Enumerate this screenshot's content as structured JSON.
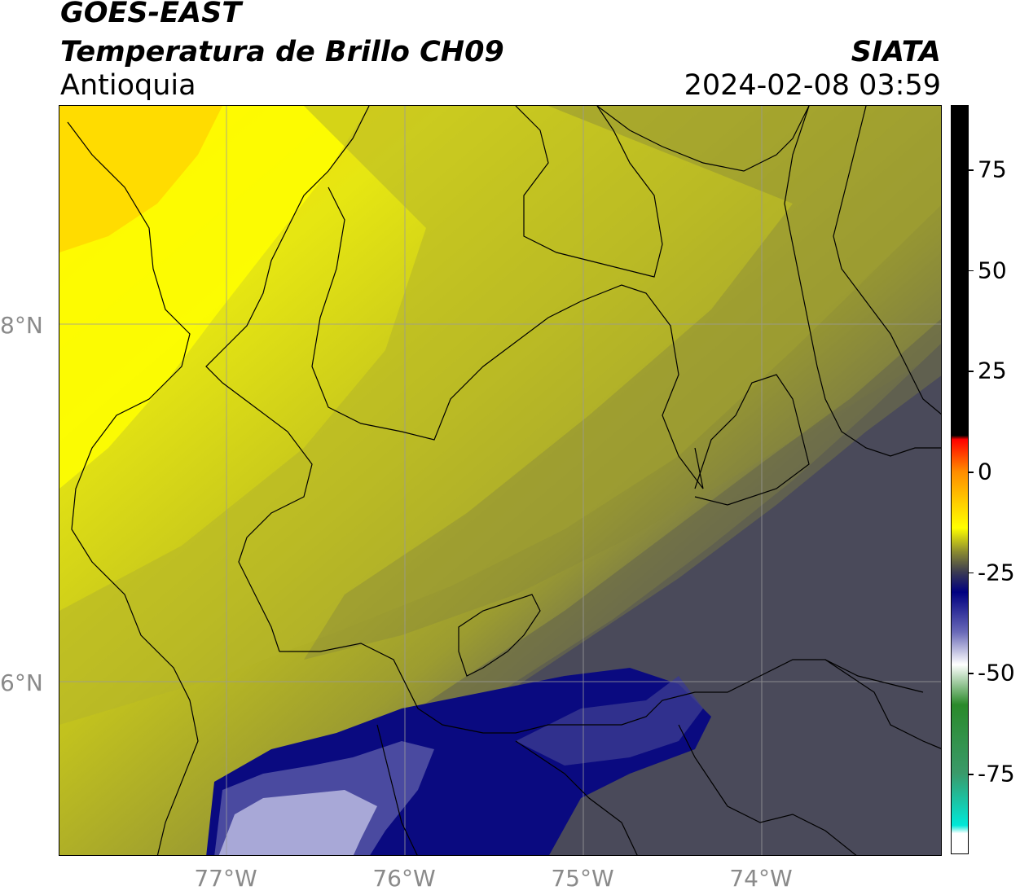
{
  "header": {
    "satellite": "GOES-EAST",
    "product": "Temperatura de Brillo CH09",
    "region": "Antioquia",
    "organization": "SIATA",
    "datetime": "2024-02-08 03:59"
  },
  "map": {
    "extent": {
      "lon_min": -77.95,
      "lon_max": -73.0,
      "lat_min": 4.95,
      "lat_max": 9.15
    },
    "lat_ticks": [
      {
        "value": 8,
        "label": "8°N"
      },
      {
        "value": 6,
        "label": "6°N"
      }
    ],
    "lon_ticks": [
      {
        "value": -77,
        "label": "77°W"
      },
      {
        "value": -76,
        "label": "76°W"
      },
      {
        "value": -75,
        "label": "75°W"
      },
      {
        "value": -74,
        "label": "74°W"
      }
    ],
    "gridlines": true,
    "gridline_color": "#9a9a9a",
    "boundary_color": "#000000"
  },
  "colorbar": {
    "range": [
      -95,
      91
    ],
    "tick_values": [
      75,
      50,
      25,
      0,
      -25,
      -50,
      -75
    ],
    "tick_labels": [
      "75",
      "50",
      "25",
      "0",
      "-25",
      "-50",
      "-75"
    ],
    "stops": [
      {
        "value": 91,
        "color": "#000000"
      },
      {
        "value": 9,
        "color": "#000000"
      },
      {
        "value": 8,
        "color": "#ff0000"
      },
      {
        "value": 0,
        "color": "#ff8c00"
      },
      {
        "value": -8,
        "color": "#ffd000"
      },
      {
        "value": -14,
        "color": "#ffff00"
      },
      {
        "value": -20,
        "color": "#8a8a30"
      },
      {
        "value": -25,
        "color": "#3a3a52"
      },
      {
        "value": -30,
        "color": "#000080"
      },
      {
        "value": -40,
        "color": "#6a6ab8"
      },
      {
        "value": -48,
        "color": "#ffffff"
      },
      {
        "value": -58,
        "color": "#2a8a2a"
      },
      {
        "value": -75,
        "color": "#3a9a6a"
      },
      {
        "value": -88,
        "color": "#00e8d8"
      },
      {
        "value": -90,
        "color": "#ffffff"
      },
      {
        "value": -95,
        "color": "#ffffff"
      }
    ]
  },
  "colors": {
    "yellow_bright": "#ffff00",
    "yellow_orange": "#ffd800",
    "olive": "#a8a82a",
    "olive_dark": "#7a7a3a",
    "grey_slate": "#4a4a58",
    "navy": "#0a0a80",
    "navy_light": "#5a5aa8",
    "lavender": "#b8b8e0"
  }
}
